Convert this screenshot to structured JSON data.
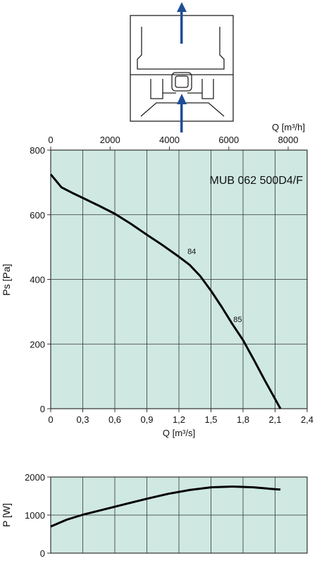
{
  "colors": {
    "plot_bg": "#cfe8e2",
    "grid": "#333333",
    "curve": "#000000",
    "arrow": "#1f4e96"
  },
  "diagram": {
    "icon": "fan-housing-airflow-up-diagram"
  },
  "chart_data": [
    {
      "type": "line",
      "title": "MUB 062 500D4/F",
      "xlabel": "Q [m³/s]",
      "ylabel": "Ps [Pa]",
      "xlim": [
        0,
        2.4
      ],
      "ylim": [
        0,
        800
      ],
      "xticks": [
        0,
        0.3,
        0.6,
        0.9,
        1.2,
        1.5,
        1.8,
        2.1,
        2.4
      ],
      "xtick_labels": [
        "0",
        "0,3",
        "0,6",
        "0,9",
        "1,2",
        "1,5",
        "1,8",
        "2,1",
        "2,4"
      ],
      "yticks": [
        0,
        200,
        400,
        600,
        800
      ],
      "ytick_labels": [
        "0",
        "200",
        "400",
        "600",
        "800"
      ],
      "secondary_x": {
        "label": "Q [m³/h]",
        "ticks": [
          0,
          2000,
          4000,
          6000,
          8000
        ],
        "tick_labels": [
          "0",
          "2000",
          "4000",
          "6000",
          "8000"
        ],
        "to_primary": 3600
      },
      "grid": true,
      "series": [
        {
          "x": [
            0,
            0.1,
            0.2,
            0.3,
            0.45,
            0.6,
            0.75,
            0.9,
            1.05,
            1.2,
            1.3,
            1.4,
            1.5,
            1.6,
            1.7,
            1.8,
            1.9,
            2.0,
            2.1,
            2.15
          ],
          "y": [
            725,
            685,
            668,
            652,
            628,
            603,
            572,
            538,
            505,
            470,
            445,
            410,
            365,
            315,
            262,
            212,
            152,
            90,
            30,
            0
          ]
        }
      ],
      "annotations": [
        {
          "text": "84",
          "x": 1.32,
          "y": 478
        },
        {
          "text": "85",
          "x": 1.75,
          "y": 268
        }
      ]
    },
    {
      "type": "line",
      "ylabel": "P [W]",
      "xlim": [
        0,
        2.4
      ],
      "ylim": [
        0,
        2000
      ],
      "yticks": [
        0,
        1000,
        2000
      ],
      "ytick_labels": [
        "0",
        "1000",
        "2000"
      ],
      "grid": true,
      "series": [
        {
          "x": [
            0,
            0.15,
            0.3,
            0.5,
            0.7,
            0.9,
            1.1,
            1.3,
            1.5,
            1.7,
            1.9,
            2.1,
            2.15
          ],
          "y": [
            700,
            880,
            1010,
            1150,
            1290,
            1430,
            1560,
            1660,
            1730,
            1750,
            1730,
            1680,
            1670
          ]
        }
      ]
    }
  ]
}
